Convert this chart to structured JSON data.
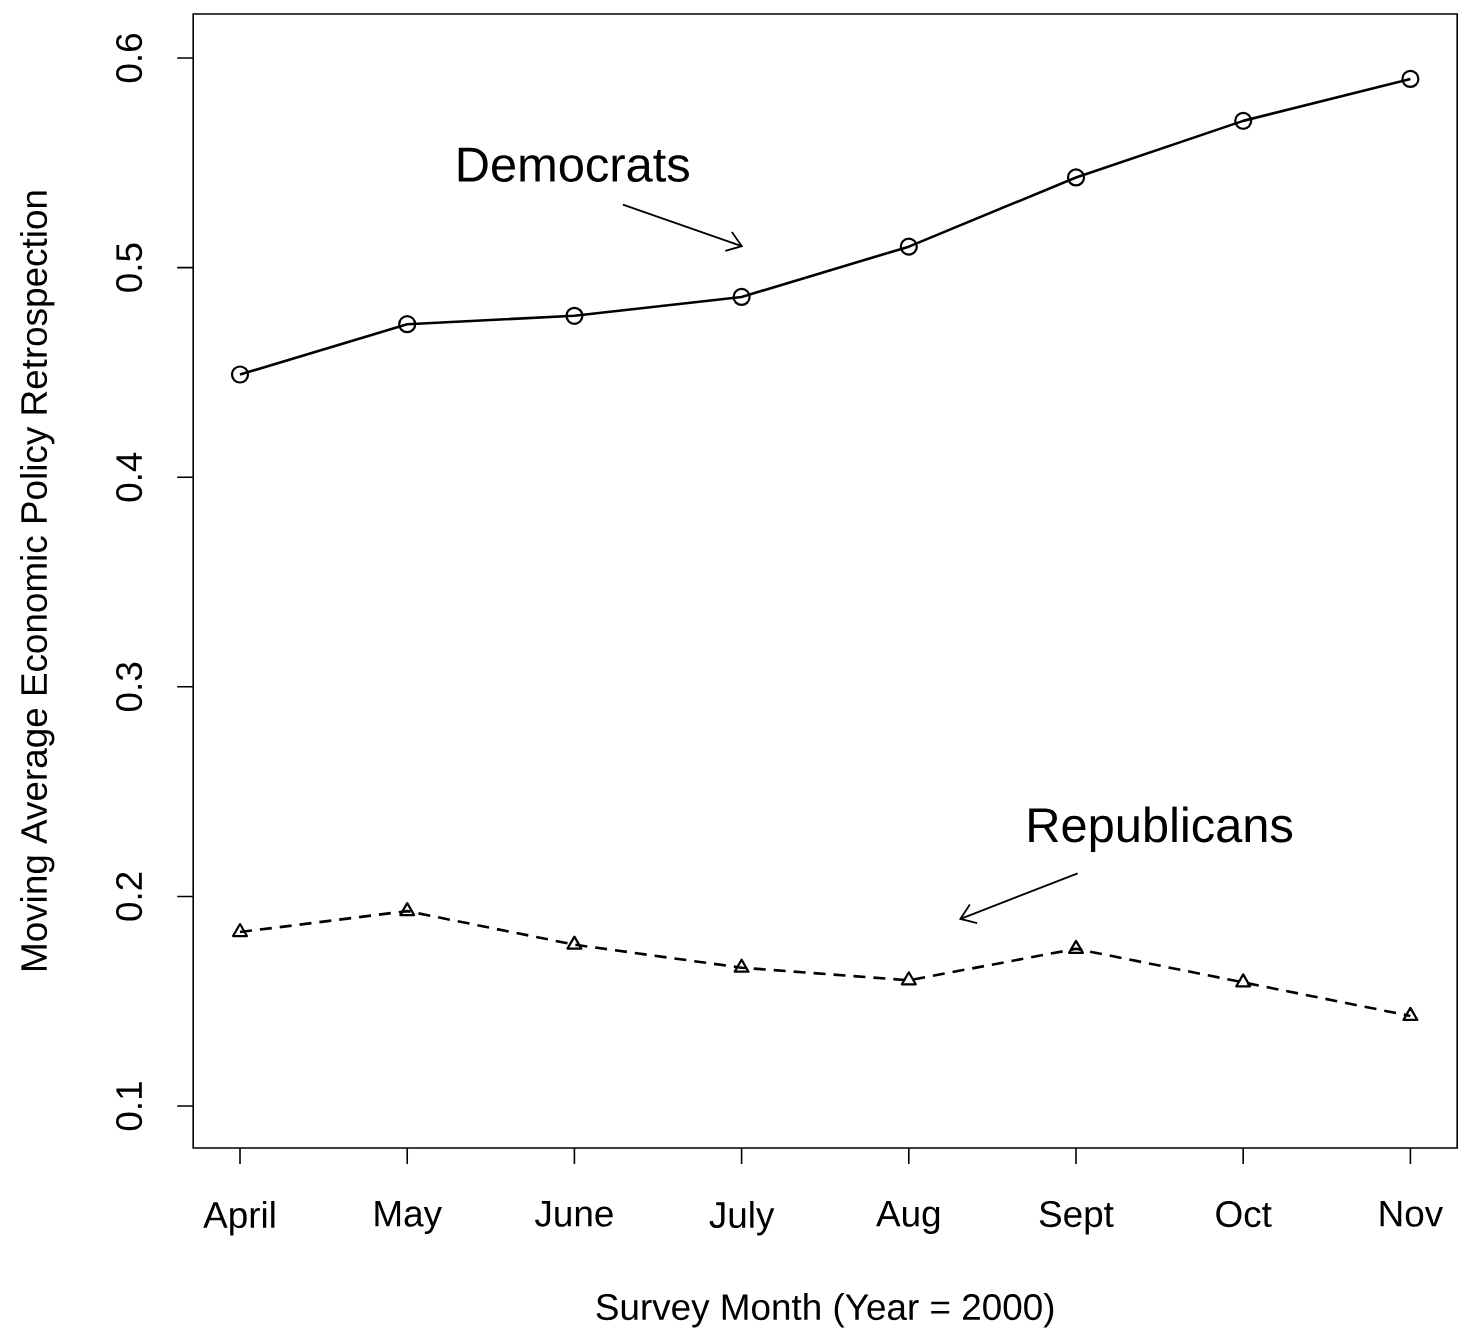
{
  "chart_data": {
    "type": "line",
    "xlabel": "Survey Month (Year = 2000)",
    "ylabel": "Moving Average Economic Policy Retrospection",
    "categories": [
      "April",
      "May",
      "June",
      "July",
      "Aug",
      "Sept",
      "Oct",
      "Nov"
    ],
    "series": [
      {
        "name": "Democrats",
        "color": "#000000",
        "marker": "circle",
        "line_style": "solid",
        "values": [
          0.449,
          0.473,
          0.477,
          0.486,
          0.51,
          0.543,
          0.57,
          0.59
        ]
      },
      {
        "name": "Republicans",
        "color": "#000000",
        "marker": "triangle",
        "line_style": "dashed",
        "values": [
          0.183,
          0.193,
          0.177,
          0.166,
          0.16,
          0.175,
          0.159,
          0.143
        ]
      }
    ],
    "ylim": [
      0.08,
      0.621
    ],
    "yticks": [
      0.1,
      0.2,
      0.3,
      0.4,
      0.5,
      0.6
    ],
    "grid": false,
    "legend": false
  }
}
